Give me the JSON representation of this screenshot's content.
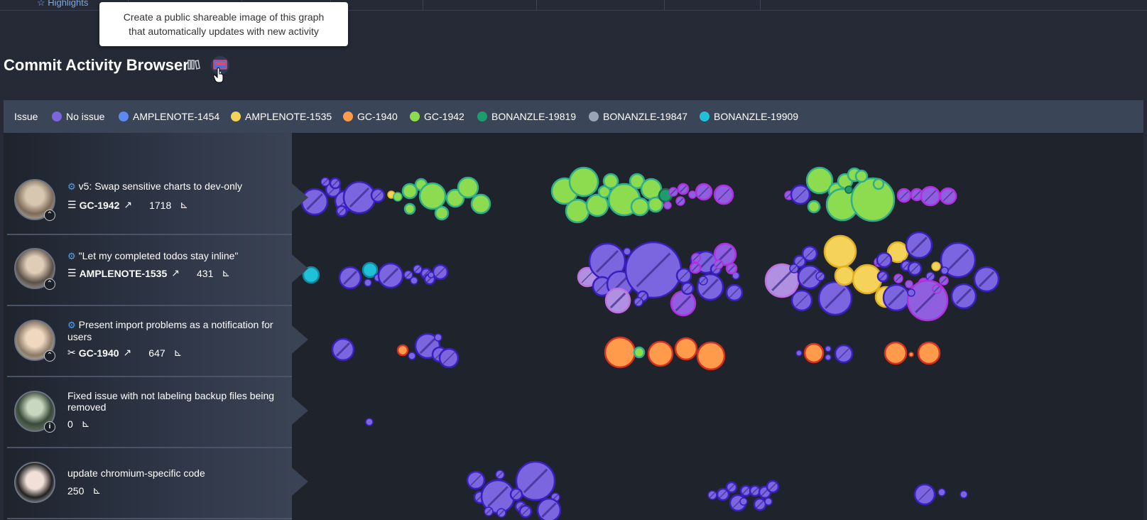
{
  "nav": {
    "tabs": [
      {
        "label": "Highlights"
      },
      {
        "label": ""
      },
      {
        "label": ""
      },
      {
        "label": ""
      },
      {
        "label": ""
      },
      {
        "label": ""
      },
      {
        "label": ""
      }
    ]
  },
  "tooltip": {
    "line1": "Create a public shareable image of this graph",
    "line2": "that automatically updates with new activity"
  },
  "page": {
    "title": "Commit Activity Browser"
  },
  "legend": {
    "label": "Issue",
    "items": [
      {
        "label": "No issue",
        "color": "#7b66e0"
      },
      {
        "label": "AMPLENOTE-1454",
        "color": "#5b8bf0"
      },
      {
        "label": "AMPLENOTE-1535",
        "color": "#f5d35a"
      },
      {
        "label": "GC-1940",
        "color": "#ff9b4a"
      },
      {
        "label": "GC-1942",
        "color": "#8ddc50"
      },
      {
        "label": "BONANZLE-19819",
        "color": "#1f9c6e"
      },
      {
        "label": "BONANZLE-19847",
        "color": "#9aa4b8"
      },
      {
        "label": "BONANZLE-19909",
        "color": "#1fc0d8"
      }
    ]
  },
  "commits": [
    {
      "title": "v5: Swap sensitive charts to dev-only",
      "issue": "GC-1942",
      "count": "1718",
      "has_gear": true,
      "issue_icon": "list-icon",
      "badge": "chevron-up"
    },
    {
      "title": "\"Let my completed todos stay inline\"",
      "issue": "AMPLENOTE-1535",
      "count": "431",
      "has_gear": true,
      "issue_icon": "list-icon",
      "badge": "chevron-up"
    },
    {
      "title": "Present import problems as a notification for users",
      "issue": "GC-1940",
      "count": "647",
      "has_gear": true,
      "issue_icon": "tools-icon",
      "badge": "chevron-up"
    },
    {
      "title": "Fixed issue with not labeling backup files being removed",
      "issue": "",
      "count": "0",
      "has_gear": false,
      "issue_icon": "",
      "badge": "info"
    },
    {
      "title": "update chromium-specific code",
      "issue": "",
      "count": "250",
      "has_gear": false,
      "issue_icon": "",
      "badge": ""
    }
  ]
}
